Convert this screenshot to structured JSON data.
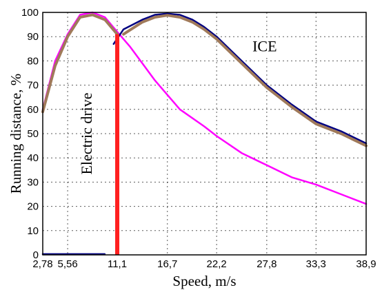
{
  "chart_data": {
    "type": "line",
    "xlabel": "Speed, m/s",
    "ylabel": "Running distance, %",
    "x_ticks": [
      "2,78",
      "5,56",
      "11,1",
      "16,7",
      "22,2",
      "27,8",
      "33,3",
      "38,9"
    ],
    "x_tick_values": [
      2.78,
      5.56,
      11.1,
      16.7,
      22.2,
      27.8,
      33.3,
      38.9
    ],
    "y_ticks": [
      0,
      10,
      20,
      30,
      40,
      50,
      60,
      70,
      80,
      90,
      100
    ],
    "xlim": [
      2.78,
      38.9
    ],
    "ylim": [
      0,
      100
    ],
    "grid": true,
    "annotations": [
      {
        "text": "Electric drive",
        "x": 7.0,
        "y": 50
      },
      {
        "text": "ICE",
        "x": 26.2,
        "y": 84
      }
    ],
    "series": [
      {
        "name": "",
        "color": "#ff00ff",
        "points": [
          [
            2.78,
            60
          ],
          [
            4.17,
            80
          ],
          [
            5.56,
            91
          ],
          [
            6.95,
            99
          ],
          [
            8.34,
            100
          ],
          [
            9.73,
            98
          ],
          [
            11.1,
            92
          ],
          [
            12.5,
            86
          ],
          [
            13.9,
            79
          ],
          [
            15.3,
            72
          ],
          [
            16.7,
            66
          ],
          [
            18.1,
            60
          ],
          [
            20.8,
            53
          ],
          [
            22.2,
            49
          ],
          [
            25.0,
            42
          ],
          [
            27.8,
            37
          ],
          [
            30.6,
            32
          ],
          [
            33.3,
            29
          ],
          [
            36.1,
            25
          ],
          [
            38.9,
            21
          ]
        ]
      },
      {
        "name": "",
        "color": "#a07a5a",
        "points": [
          [
            2.78,
            59
          ],
          [
            4.17,
            78
          ],
          [
            5.56,
            90
          ],
          [
            6.95,
            98
          ],
          [
            8.34,
            99
          ],
          [
            9.73,
            97
          ],
          [
            11.1,
            91
          ]
        ]
      },
      {
        "name": "",
        "color": "#000080",
        "points": [
          [
            10.7,
            87
          ],
          [
            11.8,
            93
          ],
          [
            13.9,
            97
          ],
          [
            15.3,
            99
          ],
          [
            16.7,
            99.5
          ],
          [
            18.1,
            99
          ],
          [
            19.5,
            97
          ],
          [
            20.8,
            94
          ],
          [
            22.2,
            90
          ],
          [
            23.6,
            85
          ],
          [
            25.0,
            80
          ],
          [
            26.4,
            75
          ],
          [
            27.8,
            70
          ],
          [
            30.6,
            62
          ],
          [
            33.3,
            55
          ],
          [
            36.1,
            51
          ],
          [
            38.9,
            46
          ]
        ]
      },
      {
        "name": "",
        "color": "#a07a5a",
        "points": [
          [
            11.8,
            91
          ],
          [
            13.9,
            96
          ],
          [
            15.3,
            98
          ],
          [
            16.7,
            98.8
          ],
          [
            18.1,
            98
          ],
          [
            19.5,
            96
          ],
          [
            20.8,
            93
          ],
          [
            22.2,
            89
          ],
          [
            23.6,
            84
          ],
          [
            25.0,
            79
          ],
          [
            26.4,
            74
          ],
          [
            27.8,
            69
          ],
          [
            30.6,
            61
          ],
          [
            33.3,
            54
          ],
          [
            36.1,
            50
          ],
          [
            38.9,
            45
          ]
        ]
      },
      {
        "name": "",
        "color": "#000080",
        "points": [
          [
            2.78,
            0.3
          ],
          [
            9.7,
            0.3
          ]
        ]
      }
    ],
    "marker_line": {
      "x": 11.1,
      "y_from": 0,
      "y_to": 91,
      "color": "#ff2020"
    }
  }
}
